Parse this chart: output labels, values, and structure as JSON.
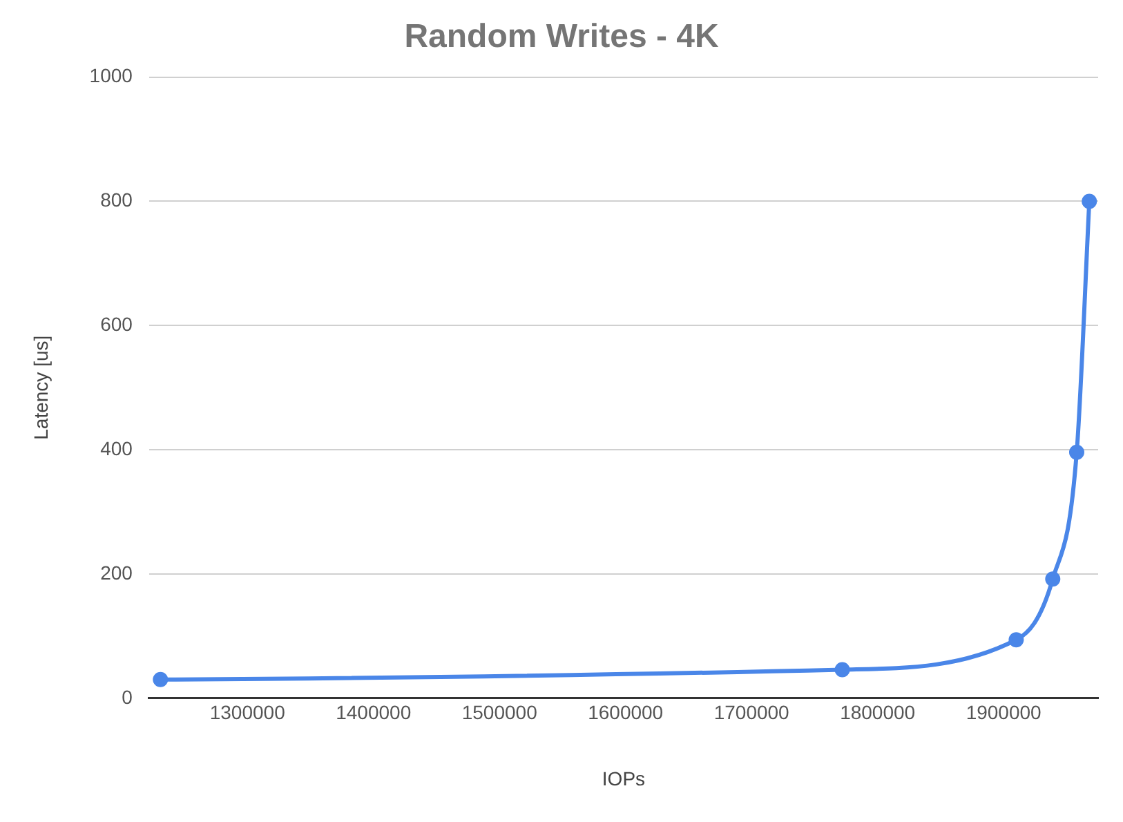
{
  "chart_data": {
    "type": "line",
    "title": "Random Writes - 4K",
    "xlabel": "IOPs",
    "ylabel": "Latency [us]",
    "x": [
      1231000,
      1772000,
      1910000,
      1939000,
      1958000,
      1968000
    ],
    "series": [
      {
        "color": "#4a86e8",
        "values": [
          30,
          46,
          94,
          192,
          396,
          800
        ]
      }
    ],
    "xlim": [
      1222000,
      1975000
    ],
    "xticks": [
      1300000,
      1400000,
      1500000,
      1600000,
      1700000,
      1800000,
      1900000
    ],
    "ylim": [
      0,
      1000
    ],
    "yticks": [
      0,
      200,
      400,
      600,
      800,
      1000
    ],
    "grid": "y",
    "legend": false,
    "marker": "circle",
    "line_style": "solid"
  }
}
